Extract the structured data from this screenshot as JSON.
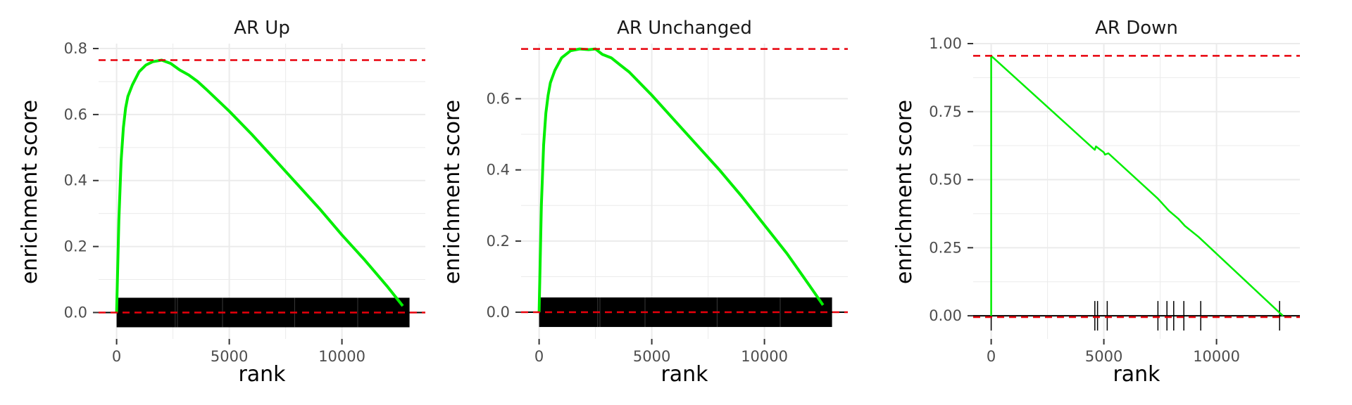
{
  "chart_data": [
    {
      "type": "line",
      "title": "AR Up",
      "xlabel": "rank",
      "ylabel": "enrichment score",
      "xlim": [
        -800,
        13700
      ],
      "ylim": [
        -0.08,
        0.815
      ],
      "xticks": [
        0,
        5000,
        10000
      ],
      "xtick_labels": [
        "0",
        "5000",
        "10000"
      ],
      "yticks": [
        0.0,
        0.2,
        0.4,
        0.6,
        0.8
      ],
      "ytick_labels": [
        "0.0",
        "0.2",
        "0.4",
        "0.6",
        "0.8"
      ],
      "grid": true,
      "max_es": 0.765,
      "min_es": 0.0,
      "series": [
        {
          "x": [
            0,
            100,
            200,
            300,
            400,
            500,
            700,
            1000,
            1300,
            1600,
            2000,
            2400,
            2800,
            3200,
            3600,
            4000,
            5000,
            6000,
            7000,
            8000,
            9000,
            10000,
            11000,
            12000,
            12700
          ],
          "y": [
            0.0,
            0.28,
            0.46,
            0.56,
            0.62,
            0.655,
            0.69,
            0.73,
            0.75,
            0.76,
            0.765,
            0.755,
            0.735,
            0.72,
            0.7,
            0.675,
            0.61,
            0.54,
            0.465,
            0.39,
            0.315,
            0.235,
            0.16,
            0.08,
            0.02
          ]
        }
      ],
      "gene_ticks": "dense",
      "gene_tick_range": [
        0,
        13000
      ]
    },
    {
      "type": "line",
      "title": "AR Unchanged",
      "xlabel": "rank",
      "ylabel": "enrichment score",
      "xlim": [
        -800,
        13700
      ],
      "ylim": [
        -0.075,
        0.755
      ],
      "xticks": [
        0,
        5000,
        10000
      ],
      "xtick_labels": [
        "0",
        "5000",
        "10000"
      ],
      "yticks": [
        0.0,
        0.2,
        0.4,
        0.6
      ],
      "ytick_labels": [
        "0.0",
        "0.2",
        "0.4",
        "0.6"
      ],
      "grid": true,
      "max_es": 0.74,
      "min_es": 0.0,
      "series": [
        {
          "x": [
            0,
            100,
            200,
            300,
            400,
            500,
            700,
            1000,
            1400,
            1800,
            2200,
            2500,
            2800,
            3200,
            3600,
            4000,
            5000,
            6000,
            7000,
            8000,
            9000,
            10000,
            11000,
            12000,
            12600
          ],
          "y": [
            0.0,
            0.3,
            0.47,
            0.56,
            0.61,
            0.645,
            0.68,
            0.715,
            0.735,
            0.74,
            0.738,
            0.74,
            0.725,
            0.715,
            0.695,
            0.675,
            0.61,
            0.54,
            0.47,
            0.4,
            0.325,
            0.245,
            0.165,
            0.075,
            0.02
          ]
        }
      ],
      "gene_ticks": "dense",
      "gene_tick_range": [
        0,
        13000
      ]
    },
    {
      "type": "line",
      "title": "AR Down",
      "xlabel": "rank",
      "ylabel": "enrichment score",
      "xlim": [
        -800,
        13700
      ],
      "ylim": [
        -0.085,
        1.0
      ],
      "xticks": [
        0,
        5000,
        10000
      ],
      "xtick_labels": [
        "0",
        "5000",
        "10000"
      ],
      "yticks": [
        0.0,
        0.25,
        0.5,
        0.75,
        1.0
      ],
      "ytick_labels": [
        "0.00",
        "0.25",
        "0.50",
        "0.75",
        "1.00"
      ],
      "grid": true,
      "max_es": 0.955,
      "min_es": -0.005,
      "series": [
        {
          "x": [
            0,
            0,
            4500,
            4600,
            4650,
            5000,
            5050,
            5200,
            7400,
            7900,
            8300,
            8600,
            9200,
            12750,
            12950
          ],
          "y": [
            0.0,
            0.955,
            0.617,
            0.61,
            0.622,
            0.6,
            0.592,
            0.597,
            0.43,
            0.385,
            0.357,
            0.33,
            0.29,
            0.015,
            0.0
          ]
        }
      ],
      "gene_ticks": [
        0,
        4600,
        4720,
        5150,
        7400,
        7800,
        8100,
        8550,
        9300,
        12800
      ]
    }
  ],
  "colors": {
    "curve": "#00ee00",
    "es_line": "#e8000b",
    "gene_tick": "#000000",
    "grid": "#ebebeb",
    "zero_line": "#000000",
    "tick_mark": "#333333"
  }
}
